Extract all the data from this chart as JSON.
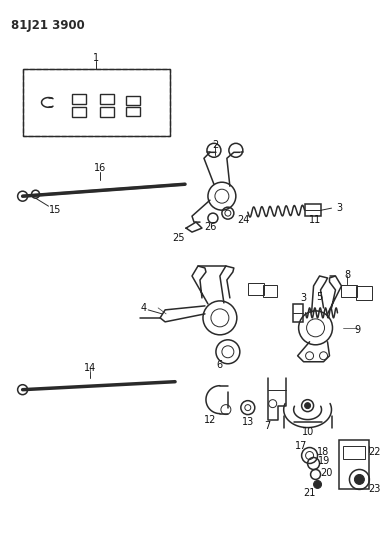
{
  "title": "81J21 3900",
  "bg_color": "#ffffff",
  "line_color": "#2a2a2a",
  "label_color": "#111111",
  "title_fontsize": 8.5,
  "label_fontsize": 7,
  "fig_width": 3.87,
  "fig_height": 5.33,
  "dpi": 100,
  "xlim": [
    0,
    387
  ],
  "ylim": [
    0,
    533
  ]
}
